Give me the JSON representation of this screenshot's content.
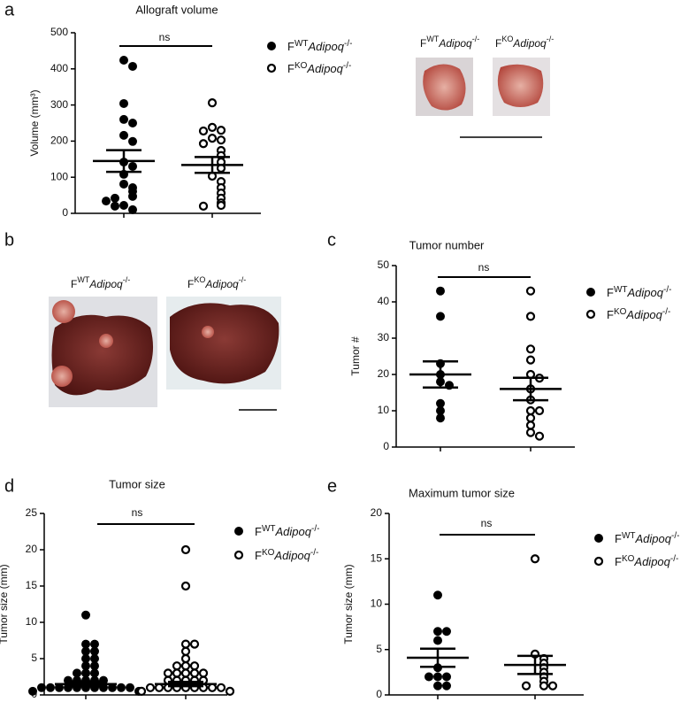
{
  "chart_data": [
    {
      "type": "dotplot",
      "panel": "a",
      "title": "Allograft volume",
      "ylabel": "Volume (mm³)",
      "annotation": "ns",
      "ylim": [
        0,
        500
      ],
      "yticks": [
        0,
        100,
        200,
        300,
        400,
        500
      ],
      "series": [
        {
          "name": [
            "F",
            "WT",
            "Adipoq",
            "-/-"
          ],
          "marker": "filled",
          "color": "#000000",
          "values": [
            424,
            407,
            304,
            260,
            250,
            216,
            199,
            142,
            130,
            108,
            81,
            71,
            61,
            47,
            42,
            22,
            10,
            20,
            34
          ],
          "mean": 145,
          "sem": 30
        },
        {
          "name": [
            "F",
            "KO",
            "Adipoq",
            "-/-"
          ],
          "marker": "open",
          "color": "#000000",
          "values": [
            306,
            238,
            230,
            228,
            208,
            203,
            193,
            174,
            160,
            142,
            125,
            103,
            88,
            71,
            56,
            42,
            29,
            22,
            20
          ],
          "mean": 134,
          "sem": 22
        }
      ]
    },
    {
      "type": "dotplot",
      "panel": "c",
      "title": "Tumor number",
      "ylabel": "Tumor #",
      "annotation": "ns",
      "ylim": [
        0,
        50
      ],
      "yticks": [
        0,
        10,
        20,
        30,
        40,
        50
      ],
      "series": [
        {
          "name": [
            "F",
            "WT",
            "Adipoq",
            "-/-"
          ],
          "marker": "filled",
          "color": "#000000",
          "values": [
            43,
            36,
            23,
            20,
            18,
            17,
            12,
            10,
            8
          ],
          "mean": 20,
          "sem": 3.6
        },
        {
          "name": [
            "F",
            "KO",
            "Adipoq",
            "-/-"
          ],
          "marker": "open",
          "color": "#000000",
          "values": [
            43,
            36,
            27,
            24,
            20,
            19,
            16,
            13,
            10,
            10,
            8,
            6,
            4,
            3
          ],
          "mean": 16,
          "sem": 3.1
        }
      ]
    },
    {
      "type": "dotplot",
      "panel": "d",
      "title": "Tumor size",
      "ylabel": "Tumor size (mm)",
      "annotation": "ns",
      "ylim": [
        0,
        25
      ],
      "yticks": [
        0,
        5,
        10,
        15,
        20,
        25
      ],
      "series": [
        {
          "name": [
            "F",
            "WT",
            "Adipoq",
            "-/-"
          ],
          "marker": "filled",
          "color": "#000000",
          "values": [
            11,
            7,
            7,
            6,
            6,
            5,
            5,
            4,
            4,
            3,
            3,
            3,
            2,
            2,
            2,
            2,
            2,
            1,
            1,
            1,
            1,
            1,
            1,
            1,
            1,
            1,
            1,
            1,
            0.5,
            0.5
          ],
          "mean": 1.5,
          "sem": 0.3
        },
        {
          "name": [
            "F",
            "KO",
            "Adipoq",
            "-/-"
          ],
          "marker": "open",
          "color": "#000000",
          "values": [
            20,
            15,
            7,
            7,
            6,
            5,
            4,
            4,
            4,
            3,
            3,
            3,
            3,
            3,
            2,
            2,
            2,
            2,
            2,
            1,
            1,
            1,
            1,
            1,
            1,
            1,
            1,
            1,
            0.5,
            0.5
          ],
          "mean": 1.5,
          "sem": 0.3
        }
      ]
    },
    {
      "type": "dotplot",
      "panel": "e",
      "title": "Maximum tumor size",
      "ylabel": "Tumor size (mm)",
      "annotation": "ns",
      "ylim": [
        0,
        20
      ],
      "yticks": [
        0,
        5,
        10,
        15,
        20
      ],
      "series": [
        {
          "name": [
            "F",
            "WT",
            "Adipoq",
            "-/-"
          ],
          "marker": "filled",
          "color": "#000000",
          "values": [
            11,
            7,
            7,
            6,
            3,
            2,
            2,
            2,
            1,
            1
          ],
          "mean": 4.1,
          "sem": 1.0
        },
        {
          "name": [
            "F",
            "KO",
            "Adipoq",
            "-/-"
          ],
          "marker": "open",
          "color": "#000000",
          "values": [
            15,
            4.5,
            4,
            3.5,
            3,
            2.5,
            2,
            1.5,
            1,
            1,
            1
          ],
          "mean": 3.3,
          "sem": 1.0
        }
      ]
    }
  ],
  "photo_panel": "b",
  "photo_labels": {
    "a": [
      [
        "F",
        "WT",
        "Adipoq",
        "-/-"
      ],
      [
        "F",
        "KO",
        "Adipoq",
        "-/-"
      ]
    ],
    "b": [
      [
        "F",
        "WT",
        "Adipoq",
        "-/-"
      ],
      [
        "F",
        "KO",
        "Adipoq",
        "-/-"
      ]
    ]
  }
}
